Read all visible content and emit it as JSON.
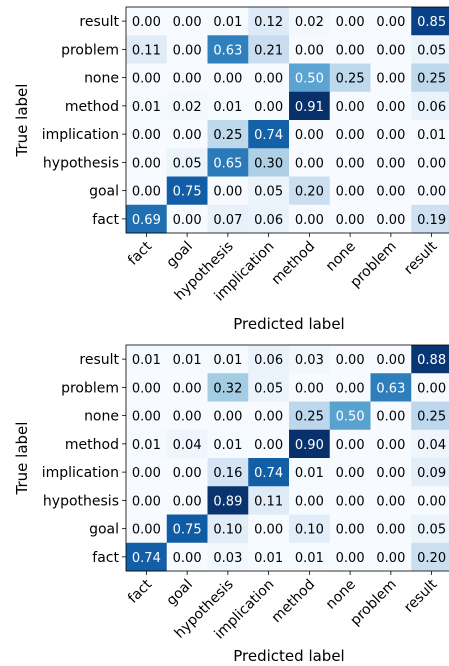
{
  "chart_data": [
    {
      "type": "heatmap",
      "title": "",
      "xlabel": "Predicted label",
      "ylabel": "True label",
      "x_categories": [
        "fact",
        "goal",
        "hypothesis",
        "implication",
        "method",
        "none",
        "problem",
        "result"
      ],
      "y_categories": [
        "result",
        "problem",
        "none",
        "method",
        "implication",
        "hypothesis",
        "goal",
        "fact"
      ],
      "colormap": "Blues",
      "values": [
        [
          0.0,
          0.0,
          0.01,
          0.12,
          0.02,
          0.0,
          0.0,
          0.85
        ],
        [
          0.11,
          0.0,
          0.63,
          0.21,
          0.0,
          0.0,
          0.0,
          0.05
        ],
        [
          0.0,
          0.0,
          0.0,
          0.0,
          0.5,
          0.25,
          0.0,
          0.25
        ],
        [
          0.01,
          0.02,
          0.01,
          0.0,
          0.91,
          0.0,
          0.0,
          0.06
        ],
        [
          0.0,
          0.0,
          0.25,
          0.74,
          0.0,
          0.0,
          0.0,
          0.01
        ],
        [
          0.0,
          0.05,
          0.65,
          0.3,
          0.0,
          0.0,
          0.0,
          0.0
        ],
        [
          0.0,
          0.75,
          0.0,
          0.05,
          0.2,
          0.0,
          0.0,
          0.0
        ],
        [
          0.69,
          0.0,
          0.07,
          0.06,
          0.0,
          0.0,
          0.0,
          0.19
        ]
      ]
    },
    {
      "type": "heatmap",
      "title": "",
      "xlabel": "Predicted label",
      "ylabel": "True label",
      "x_categories": [
        "fact",
        "goal",
        "hypothesis",
        "implication",
        "method",
        "none",
        "problem",
        "result"
      ],
      "y_categories": [
        "result",
        "problem",
        "none",
        "method",
        "implication",
        "hypothesis",
        "goal",
        "fact"
      ],
      "colormap": "Blues",
      "values": [
        [
          0.01,
          0.01,
          0.01,
          0.06,
          0.03,
          0.0,
          0.0,
          0.88
        ],
        [
          0.0,
          0.0,
          0.32,
          0.05,
          0.0,
          0.0,
          0.63,
          0.0
        ],
        [
          0.0,
          0.0,
          0.0,
          0.0,
          0.25,
          0.5,
          0.0,
          0.25
        ],
        [
          0.01,
          0.04,
          0.01,
          0.0,
          0.9,
          0.0,
          0.0,
          0.04
        ],
        [
          0.0,
          0.0,
          0.16,
          0.74,
          0.01,
          0.0,
          0.0,
          0.09
        ],
        [
          0.0,
          0.0,
          0.89,
          0.11,
          0.0,
          0.0,
          0.0,
          0.0
        ],
        [
          0.0,
          0.75,
          0.1,
          0.0,
          0.1,
          0.0,
          0.0,
          0.05
        ],
        [
          0.74,
          0.0,
          0.03,
          0.01,
          0.01,
          0.0,
          0.0,
          0.2
        ]
      ]
    }
  ]
}
